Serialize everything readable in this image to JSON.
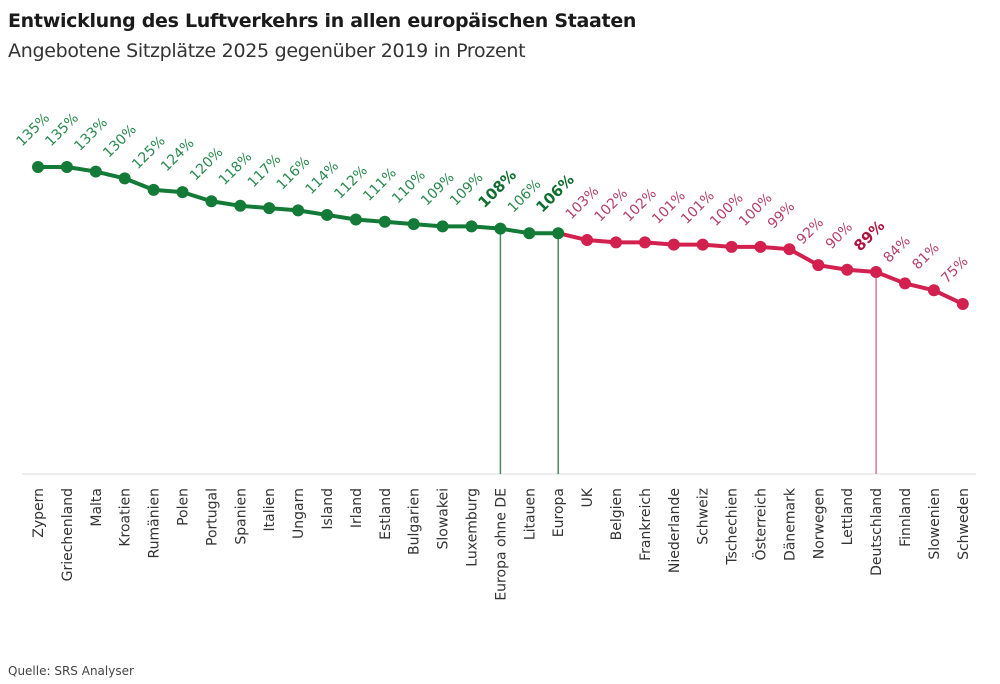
{
  "header": {
    "title": "Entwicklung des Luftverkehrs in allen europäischen Staaten",
    "subtitle": "Angebotene Sitzplätze 2025 gegenüber 2019 in Prozent"
  },
  "footer": {
    "source": "Quelle: SRS Analyser"
  },
  "colors": {
    "above_europe": "#137a38",
    "above_europe_label": "#2b8a4f",
    "above_europe_label_bold": "#0f6e30",
    "below_europe": "#d2204f",
    "below_europe_label": "#b8406a",
    "below_europe_label_bold": "#b0123f",
    "axis": "#eeeeee",
    "dropline_green": "#4a8a60",
    "dropline_red": "#d47a98"
  },
  "chart_data": {
    "type": "line",
    "title": "Entwicklung des Luftverkehrs in allen europäischen Staaten",
    "subtitle": "Angebotene Sitzplätze 2025 gegenüber 2019 in Prozent",
    "xlabel": "",
    "ylabel": "",
    "unit": "%",
    "grid": false,
    "legend": "none",
    "ylim": [
      0,
      135
    ],
    "categories": [
      "Zypern",
      "Griechenland",
      "Malta",
      "Kroatien",
      "Rumänien",
      "Polen",
      "Portugal",
      "Spanien",
      "Italien",
      "Ungarn",
      "Island",
      "Irland",
      "Estland",
      "Bulgarien",
      "Slowakei",
      "Luxemburg",
      "Europa ohne DE",
      "Litauen",
      "Europa",
      "UK",
      "Belgien",
      "Frankreich",
      "Niederlande",
      "Schweiz",
      "Tschechien",
      "Österreich",
      "Dänemark",
      "Norwegen",
      "Lettland",
      "Deutschland",
      "Finnland",
      "Slowenien",
      "Schweden"
    ],
    "values": [
      135,
      135,
      133,
      130,
      125,
      124,
      120,
      118,
      117,
      116,
      114,
      112,
      111,
      110,
      109,
      109,
      108,
      106,
      106,
      103,
      102,
      102,
      101,
      101,
      100,
      100,
      99,
      92,
      90,
      89,
      84,
      81,
      75
    ],
    "labels": [
      "135%",
      "135%",
      "133%",
      "130%",
      "125%",
      "124%",
      "120%",
      "118%",
      "117%",
      "116%",
      "114%",
      "112%",
      "111%",
      "110%",
      "109%",
      "109%",
      "108%",
      "106%",
      "106%",
      "103%",
      "102%",
      "102%",
      "101%",
      "101%",
      "100%",
      "100%",
      "99%",
      "92%",
      "90%",
      "89%",
      "84%",
      "81%",
      "75%"
    ],
    "series_split": {
      "green_until_index": 18,
      "note": "Green up to and including Europa, crimson afterwards"
    },
    "highlighted": [
      "Europa ohne DE",
      "Europa",
      "Deutschland"
    ]
  }
}
